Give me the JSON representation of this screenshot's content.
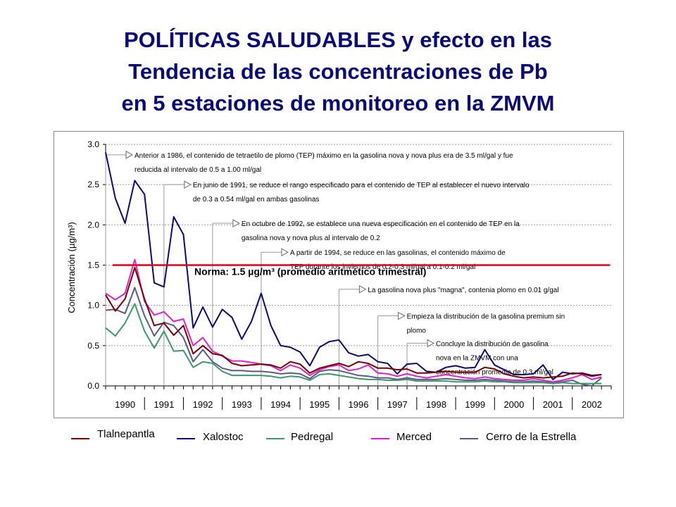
{
  "title_lines": [
    "POLÍTICAS SALUDABLES y efecto en las",
    "Tendencia de las concentraciones de Pb",
    "en 5 estaciones de monitoreo en la ZMVM"
  ],
  "chart_data": {
    "type": "line",
    "title": "",
    "xlabel": "",
    "ylabel": "Concentración (µg/m³)",
    "ylim": [
      0,
      3.0
    ],
    "yticks": [
      "0.0",
      "0.5",
      "1.0",
      "1.5",
      "2.0",
      "2.5",
      "3.0"
    ],
    "x_range": [
      1990,
      2003
    ],
    "xtick_labels": [
      "1990",
      "1991",
      "1992",
      "1993",
      "1994",
      "1995",
      "1996",
      "1997",
      "1998",
      "1999",
      "2000",
      "2001",
      "2002"
    ],
    "grid": "horizontal dotted",
    "norm_line": {
      "value": 1.5,
      "label": "Norma: 1.5 µg/m³ (promedio aritmético trimestral)",
      "color": "#e0001a"
    },
    "series": [
      {
        "name": "Tlalnepantla",
        "color": "#7a0000",
        "x": [
          1990.0,
          1990.25,
          1990.5,
          1990.75,
          1991.0,
          1991.25,
          1991.5,
          1991.75,
          1992.0,
          1992.25,
          1992.5,
          1992.75,
          1993.0,
          1993.25,
          1993.5,
          1993.75,
          1994.0,
          1994.25,
          1994.5,
          1994.75,
          1995.0,
          1995.25,
          1995.5,
          1995.75,
          1996.0,
          1996.25,
          1996.5,
          1996.75,
          1997.0,
          1997.25,
          1997.5,
          1997.75,
          1998.0,
          1998.25,
          1998.5,
          1998.75,
          1999.0,
          1999.25,
          1999.5,
          1999.75,
          2000.0,
          2000.25,
          2000.5,
          2000.75,
          2001.0,
          2001.25,
          2001.5,
          2001.75,
          2002.0,
          2002.25,
          2002.5,
          2002.75
        ],
        "values": [
          1.13,
          0.93,
          1.08,
          1.47,
          1.08,
          0.75,
          0.78,
          0.63,
          0.75,
          0.4,
          0.5,
          0.4,
          0.38,
          0.28,
          0.25,
          0.26,
          0.27,
          0.26,
          0.22,
          0.3,
          0.27,
          0.16,
          0.22,
          0.25,
          0.28,
          0.24,
          0.3,
          0.28,
          0.22,
          0.22,
          0.2,
          0.21,
          0.16,
          0.16,
          0.17,
          0.18,
          0.17,
          0.17,
          0.17,
          0.23,
          0.21,
          0.15,
          0.12,
          0.1,
          0.11,
          0.1,
          0.11,
          0.12,
          0.16,
          0.15,
          0.12,
          0.14
        ]
      },
      {
        "name": "Xalostoc",
        "color": "#0a0a78",
        "x": [
          1990.0,
          1990.25,
          1990.5,
          1990.75,
          1991.0,
          1991.25,
          1991.5,
          1991.75,
          1992.0,
          1992.25,
          1992.5,
          1992.75,
          1993.0,
          1993.25,
          1993.5,
          1993.75,
          1994.0,
          1994.25,
          1994.5,
          1994.75,
          1995.0,
          1995.25,
          1995.5,
          1995.75,
          1996.0,
          1996.25,
          1996.5,
          1996.75,
          1997.0,
          1997.25,
          1997.5,
          1997.75,
          1998.0,
          1998.25,
          1998.5,
          1998.75,
          1999.0,
          1999.25,
          1999.5,
          1999.75,
          2000.0,
          2000.25,
          2000.5,
          2000.75,
          2001.0,
          2001.25,
          2001.5,
          2001.75,
          2002.0,
          2002.25,
          2002.5,
          2002.75
        ],
        "values": [
          2.9,
          2.33,
          2.02,
          2.55,
          2.38,
          1.28,
          1.23,
          2.1,
          1.88,
          0.72,
          0.98,
          0.73,
          0.95,
          0.85,
          0.58,
          0.8,
          1.15,
          0.75,
          0.5,
          0.48,
          0.42,
          0.25,
          0.48,
          0.55,
          0.57,
          0.41,
          0.37,
          0.39,
          0.3,
          0.28,
          0.15,
          0.27,
          0.28,
          0.18,
          0.17,
          0.23,
          0.25,
          0.22,
          0.23,
          0.45,
          0.26,
          0.2,
          0.14,
          0.14,
          0.15,
          0.26,
          0.08,
          0.17,
          0.15,
          0.16,
          0.13,
          0.14
        ]
      },
      {
        "name": "Pedregal",
        "color": "#3a9a6a",
        "x": [
          1990.0,
          1990.25,
          1990.5,
          1990.75,
          1991.0,
          1991.25,
          1991.5,
          1991.75,
          1992.0,
          1992.25,
          1992.5,
          1992.75,
          1993.0,
          1993.25,
          1993.5,
          1993.75,
          1994.0,
          1994.25,
          1994.5,
          1994.75,
          1995.0,
          1995.25,
          1995.5,
          1995.75,
          1996.0,
          1996.25,
          1996.5,
          1996.75,
          1997.0,
          1997.25,
          1997.5,
          1997.75,
          1998.0,
          1998.25,
          1998.5,
          1998.75,
          1999.0,
          1999.25,
          1999.5,
          1999.75,
          2000.0,
          2000.25,
          2000.5,
          2000.75,
          2001.0,
          2001.25,
          2001.5,
          2001.75,
          2002.0,
          2002.25,
          2002.5,
          2002.75
        ],
        "values": [
          0.72,
          0.62,
          0.78,
          1.02,
          0.68,
          0.47,
          0.68,
          0.43,
          0.44,
          0.23,
          0.3,
          0.28,
          0.18,
          0.13,
          0.13,
          0.13,
          0.13,
          0.12,
          0.1,
          0.12,
          0.11,
          0.07,
          0.14,
          0.15,
          0.13,
          0.11,
          0.09,
          0.08,
          0.08,
          0.07,
          0.07,
          0.08,
          0.06,
          0.06,
          0.06,
          0.06,
          0.05,
          0.05,
          0.05,
          0.06,
          0.05,
          0.05,
          0.04,
          0.04,
          0.04,
          0.04,
          0.03,
          0.04,
          0.03,
          0.03,
          0.03,
          0.03
        ]
      },
      {
        "name": "Merced",
        "color": "#e020d0",
        "x": [
          1990.0,
          1990.25,
          1990.5,
          1990.75,
          1991.0,
          1991.25,
          1991.5,
          1991.75,
          1992.0,
          1992.25,
          1992.5,
          1992.75,
          1993.0,
          1993.25,
          1993.5,
          1993.75,
          1994.0,
          1994.25,
          1994.5,
          1994.75,
          1995.0,
          1995.25,
          1995.5,
          1995.75,
          1996.0,
          1996.25,
          1996.5,
          1996.75,
          1997.0,
          1997.25,
          1997.5,
          1997.75,
          1998.0,
          1998.25,
          1998.5,
          1998.75,
          1999.0,
          1999.25,
          1999.5,
          1999.75,
          2000.0,
          2000.25,
          2000.5,
          2000.75,
          2001.0,
          2001.25,
          2001.5,
          2001.75,
          2002.0,
          2002.25,
          2002.5,
          2002.75
        ],
        "values": [
          1.15,
          1.07,
          1.15,
          1.57,
          1.05,
          0.88,
          0.92,
          0.8,
          0.83,
          0.5,
          0.6,
          0.43,
          0.37,
          0.31,
          0.31,
          0.29,
          0.27,
          0.25,
          0.19,
          0.26,
          0.22,
          0.13,
          0.2,
          0.24,
          0.26,
          0.19,
          0.21,
          0.26,
          0.16,
          0.15,
          0.12,
          0.15,
          0.12,
          0.1,
          0.12,
          0.14,
          0.12,
          0.1,
          0.09,
          0.11,
          0.09,
          0.08,
          0.07,
          0.07,
          0.09,
          0.07,
          0.05,
          0.07,
          0.1,
          0.14,
          0.08,
          0.11
        ]
      },
      {
        "name": "Cerro de la Estrella",
        "color": "#5a5a8a",
        "x": [
          1990.0,
          1990.25,
          1990.5,
          1990.75,
          1991.0,
          1991.25,
          1991.5,
          1991.75,
          1992.0,
          1992.25,
          1992.5,
          1992.75,
          1993.0,
          1993.25,
          1993.5,
          1993.75,
          1994.0,
          1994.25,
          1994.5,
          1994.75,
          1995.0,
          1995.25,
          1995.5,
          1995.75,
          1996.0,
          1996.25,
          1996.5,
          1996.75,
          1997.0,
          1997.25,
          1997.5,
          1997.75,
          1998.0,
          1998.25,
          1998.5,
          1998.75,
          1999.0,
          1999.25,
          1999.5,
          1999.75,
          2000.0,
          2000.25,
          2000.5,
          2000.75,
          2001.0,
          2001.25,
          2001.5,
          2001.75,
          2002.0,
          2002.25,
          2002.5,
          2002.75
        ],
        "values": [
          0.94,
          0.95,
          0.9,
          1.22,
          0.87,
          0.62,
          0.79,
          0.75,
          0.6,
          0.3,
          0.45,
          0.3,
          0.22,
          0.19,
          0.19,
          0.18,
          0.18,
          0.17,
          0.15,
          0.16,
          0.15,
          0.09,
          0.18,
          0.2,
          0.19,
          0.16,
          0.13,
          0.12,
          0.1,
          0.1,
          0.08,
          0.1,
          0.08,
          0.08,
          0.08,
          0.09,
          0.08,
          0.07,
          0.07,
          0.08,
          0.07,
          0.06,
          0.05,
          0.05,
          0.06,
          0.05,
          0.04,
          0.05,
          0.07,
          0.02,
          0.0,
          0.1
        ]
      }
    ],
    "annotations": [
      {
        "year": 1990.0,
        "y_level": 2.87,
        "lines": [
          "Anterior a 1986, el contenido de tetraetilo de plomo (TEP) máximo en la gasolina nova y nova plus era de 3.5 ml/gal y fue",
          "reducida al intervalo de 0.5 a 1.00 ml/gal"
        ]
      },
      {
        "year": 1991.5,
        "y_level": 2.5,
        "lines": [
          "En junio de 1991, se reduce el rango especificado para el contenido de TEP al establecer el nuevo intervalo",
          "de 0.3 a 0.54 ml/gal en ambas gasolinas"
        ]
      },
      {
        "year": 1992.75,
        "y_level": 2.02,
        "lines": [
          "En octubre de 1992, se establece una nueva especificación en el contenido de TEP en la",
          "gasolina nova y nova plus al intervalo de 0.2"
        ]
      },
      {
        "year": 1994.0,
        "y_level": 1.66,
        "lines": [
          "A partir de 1994, se reduce en las gasolinas, el contenido máximo de",
          "TEP durante los inviernos de 0.2-0.3 ml/gal a 0.1-0.2 ml/gal"
        ]
      },
      {
        "year": 1996.0,
        "y_level": 1.2,
        "lines": [
          "La gasolina nova plus \"magna\", contenia plomo en 0.01 g/gal"
        ]
      },
      {
        "year": 1997.0,
        "y_level": 0.87,
        "lines": [
          "Empieza la distribución de la gasolina premium sin",
          "plomo"
        ]
      },
      {
        "year": 1997.75,
        "y_level": 0.53,
        "lines": [
          "Concluye la distribución de gasolina",
          "nova en la ZMVM con una",
          "concentración promedio de 0.3 ml/gal"
        ]
      }
    ]
  }
}
